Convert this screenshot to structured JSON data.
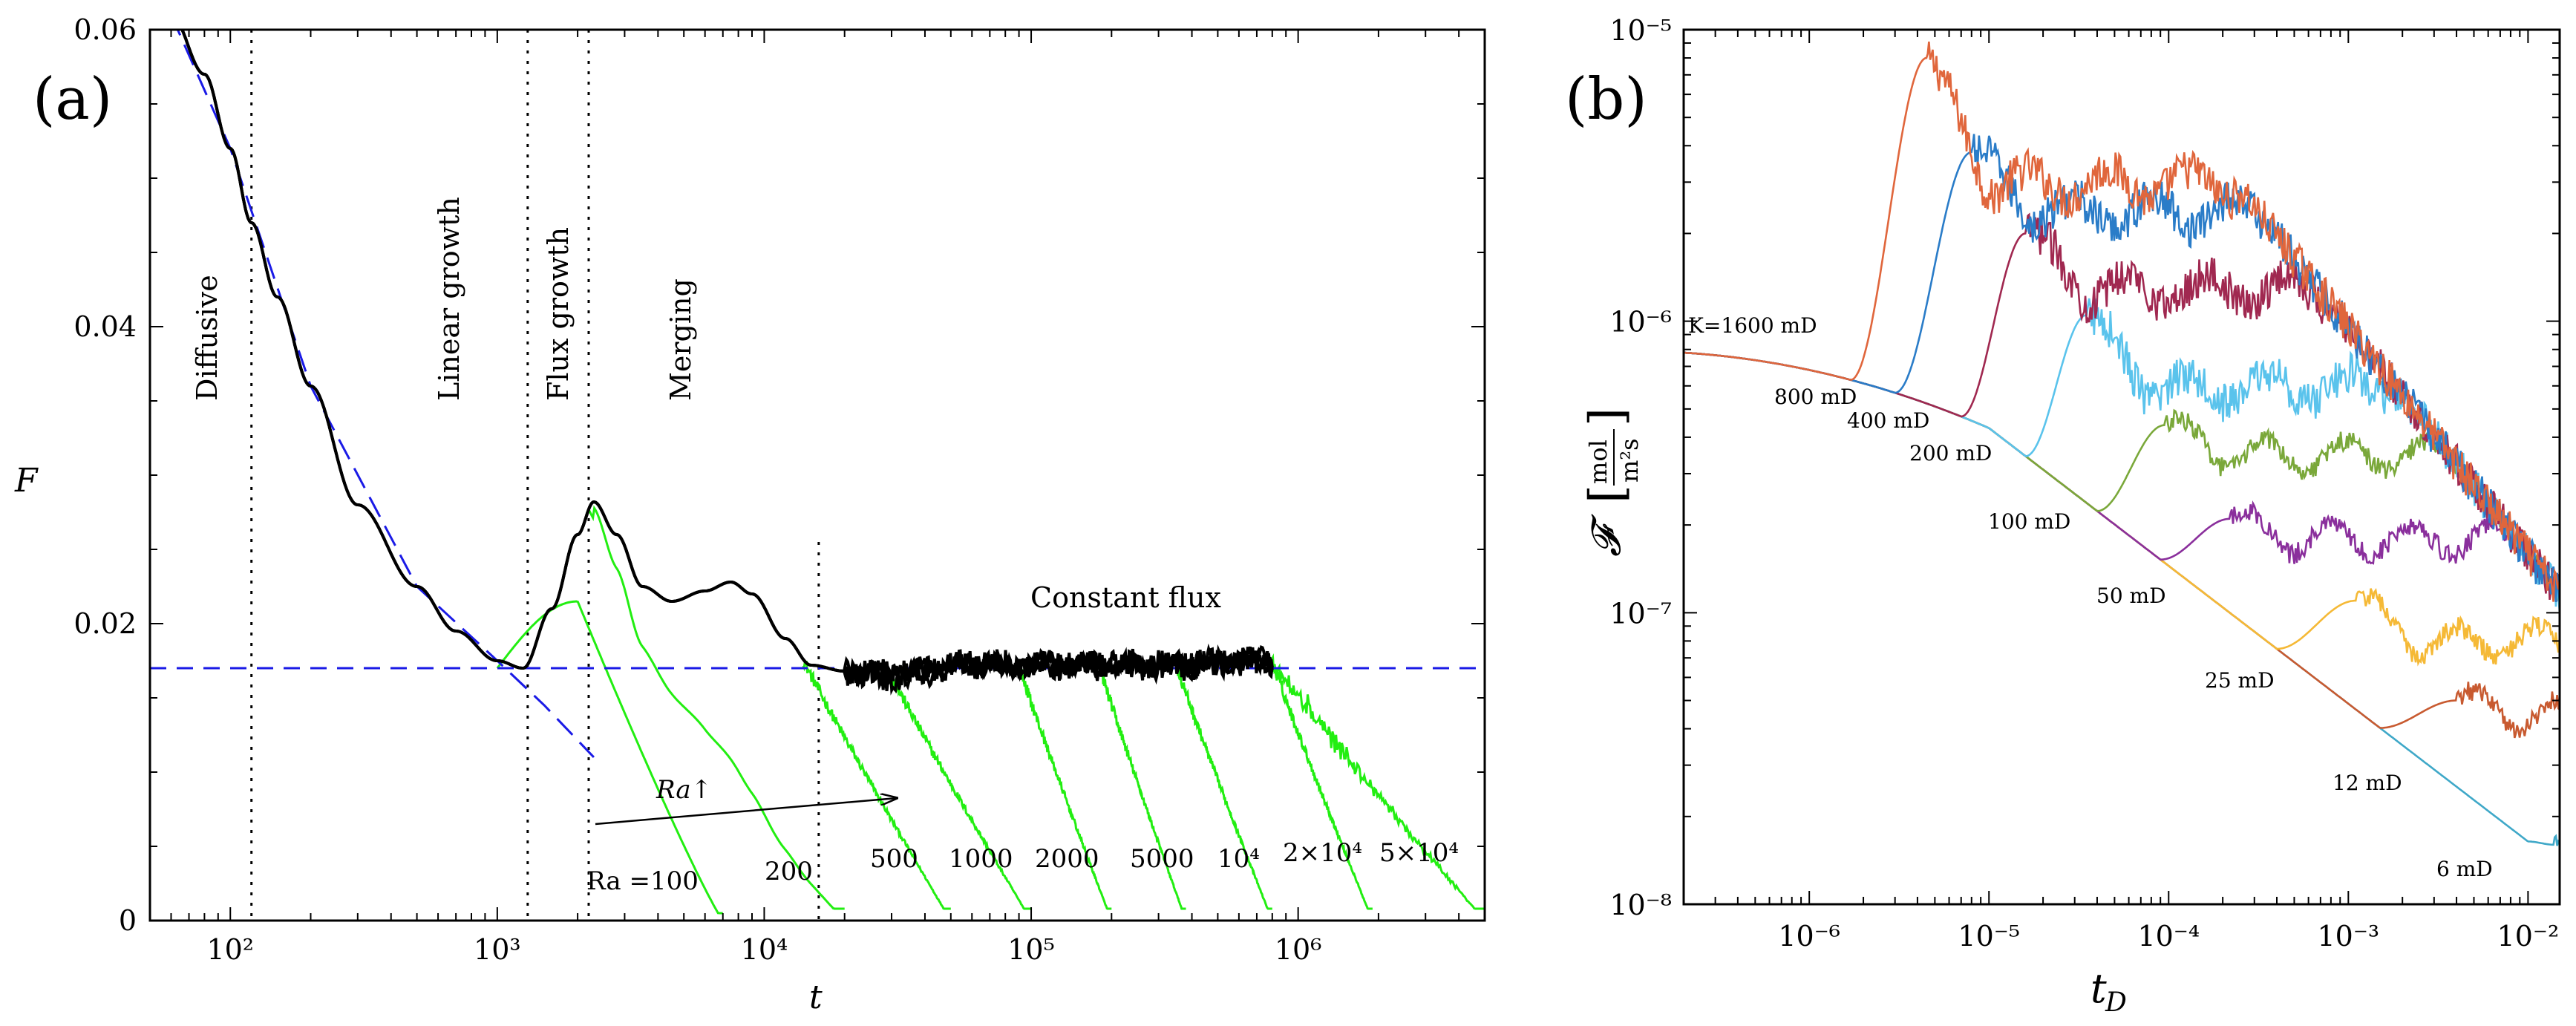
{
  "chart_data": [
    {
      "panel": "(a)",
      "type": "line",
      "xscale": "log",
      "xlim": [
        50,
        5000000
      ],
      "ylim": [
        0,
        0.06
      ],
      "xlabel": "t",
      "ylabel": "F",
      "x_ticks": [
        {
          "value": 100,
          "label": "10²"
        },
        {
          "value": 1000,
          "label": "10³"
        },
        {
          "value": 10000,
          "label": "10⁴"
        },
        {
          "value": 100000,
          "label": "10⁵"
        },
        {
          "value": 1000000,
          "label": "10⁶"
        }
      ],
      "y_ticks": [
        {
          "value": 0,
          "label": "0"
        },
        {
          "value": 0.02,
          "label": "0.02"
        },
        {
          "value": 0.04,
          "label": "0.04"
        },
        {
          "value": 0.06,
          "label": "0.06"
        }
      ],
      "phase_labels": [
        "Diffusive",
        "Linear growth",
        "Flux growth",
        "Merging"
      ],
      "phase_boundaries": [
        120,
        1300,
        2200,
        16000
      ],
      "constant_flux_label": "Constant flux",
      "constant_flux_value": 0.017,
      "ra_arrow_label": "Ra↑",
      "ra_curves": [
        {
          "label": "Ra =100",
          "t_drop": 1000,
          "t_peak": 2000,
          "f_peak": 0.0215,
          "t_end": 7000
        },
        {
          "label": "200",
          "t_drop": 2200,
          "t_end": 20000
        },
        {
          "label": "500",
          "t_drop": 14000,
          "t_end": 50000
        },
        {
          "label": "1000",
          "t_drop": 30000,
          "t_end": 100000
        },
        {
          "label": "2000",
          "t_drop": 90000,
          "t_end": 200000
        },
        {
          "label": "5000",
          "t_drop": 180000,
          "t_end": 380000
        },
        {
          "label": "10⁴",
          "t_drop": 350000,
          "t_end": 800000
        },
        {
          "label": "2×10⁴",
          "t_drop": 800000,
          "t_end": 1900000
        },
        {
          "label": "5×10⁴",
          "t_drop": 800000,
          "t_end": 5000000
        }
      ],
      "series": [
        {
          "name": "envelope",
          "color": "#000000",
          "points": [
            [
              60,
              0.061
            ],
            [
              80,
              0.057
            ],
            [
              100,
              0.052
            ],
            [
              120,
              0.047
            ],
            [
              150,
              0.042
            ],
            [
              200,
              0.036
            ],
            [
              300,
              0.028
            ],
            [
              500,
              0.0225
            ],
            [
              700,
              0.0195
            ],
            [
              1000,
              0.0175
            ],
            [
              1250,
              0.017
            ],
            [
              1600,
              0.021
            ],
            [
              2000,
              0.026
            ],
            [
              2300,
              0.0282
            ],
            [
              2800,
              0.026
            ],
            [
              3500,
              0.0225
            ],
            [
              4500,
              0.0215
            ],
            [
              6000,
              0.0222
            ],
            [
              7500,
              0.0228
            ],
            [
              9000,
              0.022
            ],
            [
              12000,
              0.019
            ],
            [
              15000,
              0.0172
            ],
            [
              20000,
              0.0168
            ],
            [
              30000,
              0.0165
            ],
            [
              60000,
              0.0173
            ],
            [
              100000,
              0.0172
            ],
            [
              300000,
              0.0172
            ],
            [
              800000,
              0.0175
            ]
          ]
        },
        {
          "name": "diffusive fit",
          "color": "#1a1ae6",
          "dash": true,
          "points": [
            [
              60,
              0.061
            ],
            [
              100,
              0.052
            ],
            [
              200,
              0.036
            ],
            [
              500,
              0.0225
            ],
            [
              1000,
              0.0175
            ],
            [
              1500,
              0.0145
            ],
            [
              2300,
              0.011
            ]
          ]
        },
        {
          "name": "constant flux level",
          "color": "#1a1ae6",
          "dash": true,
          "points": [
            [
              50,
              0.017
            ],
            [
              5000000,
              0.017
            ]
          ]
        }
      ]
    },
    {
      "panel": "(b)",
      "type": "line",
      "xscale": "log",
      "yscale": "log",
      "xlim": [
        2e-07,
        0.015
      ],
      "ylim": [
        1e-08,
        1e-05
      ],
      "xlabel": "t_D",
      "ylabel": "𝓕 [mol/m²s]",
      "ylabel_symbol": "𝓕",
      "ylabel_num": "mol",
      "ylabel_den": "m²s",
      "x_ticks": [
        {
          "value": 1e-06,
          "label": "10⁻⁶"
        },
        {
          "value": 1e-05,
          "label": "10⁻⁵"
        },
        {
          "value": 0.0001,
          "label": "10⁻⁴"
        },
        {
          "value": 0.001,
          "label": "10⁻³"
        },
        {
          "value": 0.01,
          "label": "10⁻²"
        }
      ],
      "y_ticks": [
        {
          "value": 1e-08,
          "label": "10⁻⁸"
        },
        {
          "value": 1e-07,
          "label": "10⁻⁷"
        },
        {
          "value": 1e-06,
          "label": "10⁻⁶"
        },
        {
          "value": 1e-05,
          "label": "10⁻⁵"
        }
      ],
      "series": [
        {
          "name": "K=1600 mD",
          "label": "K=1600 mD",
          "color": "#e0663c",
          "t_onset": 1.7e-06,
          "t_peak": 4.5e-06,
          "f_peak": 8e-06,
          "f_plateau": 3e-06
        },
        {
          "name": "800 mD",
          "label": "800 mD",
          "color": "#2a7cc8",
          "t_onset": 3e-06,
          "t_peak": 8e-06,
          "f_peak": 3.8e-06,
          "f_plateau": 2.4e-06
        },
        {
          "name": "400 mD",
          "label": "400 mD",
          "color": "#a02850",
          "t_onset": 7e-06,
          "t_peak": 1.6e-05,
          "f_peak": 2e-06,
          "f_plateau": 1.3e-06
        },
        {
          "name": "200 mD",
          "label": "200 mD",
          "color": "#5ac3ec",
          "t_onset": 1.6e-05,
          "t_peak": 3.5e-05,
          "f_peak": 1.05e-06,
          "f_plateau": 6e-07
        },
        {
          "name": "100 mD",
          "label": "100 mD",
          "color": "#7aa83a",
          "t_onset": 4e-05,
          "t_peak": 9.5e-05,
          "f_peak": 4.4e-07,
          "f_plateau": 3.5e-07
        },
        {
          "name": "50 mD",
          "label": "50 mD",
          "color": "#8a2f9c",
          "t_onset": 9e-05,
          "t_peak": 0.00022,
          "f_peak": 2.1e-07,
          "f_plateau": 1.8e-07
        },
        {
          "name": "25 mD",
          "label": "25 mD",
          "color": "#f5b936",
          "t_onset": 0.0004,
          "t_peak": 0.0011,
          "f_peak": 1.1e-07,
          "f_plateau": 8e-08
        },
        {
          "name": "12 mD",
          "label": "12 mD",
          "color": "#c85a30",
          "t_onset": 0.0015,
          "t_peak": 0.004,
          "f_peak": 5e-08,
          "f_plateau": 4.5e-08
        },
        {
          "name": "6 mD",
          "label": "6 mD",
          "color": "#3fa8c8",
          "t_onset": 0.01,
          "t_peak": 0.014,
          "f_peak": 1.6e-08,
          "f_plateau": 1.5e-08
        }
      ],
      "diffusive_base": {
        "t0": 2e-07,
        "f0": 7.8e-07,
        "t_ref": 1e-05,
        "f_ref": 4.3e-07,
        "t_end": 0.014,
        "f_end": 1.4e-08
      }
    }
  ]
}
